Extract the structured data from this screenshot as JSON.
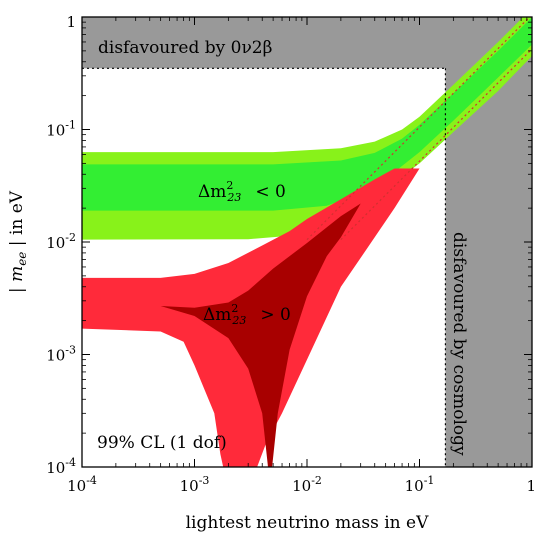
{
  "chart_data": {
    "type": "area",
    "x_scale": "log",
    "y_scale": "log",
    "xlim": [
      0.0001,
      1
    ],
    "ylim": [
      0.0001,
      1
    ],
    "xlabel": "lightest neutrino mass in eV",
    "ylabel": "|m_ee| in eV",
    "x_ticks": [
      {
        "value": 0.0001,
        "base": "10",
        "exp": "-4"
      },
      {
        "value": 0.001,
        "base": "10",
        "exp": "-3"
      },
      {
        "value": 0.01,
        "base": "10",
        "exp": "-2"
      },
      {
        "value": 0.1,
        "base": "10",
        "exp": "-1"
      },
      {
        "value": 1,
        "base": "1",
        "exp": ""
      }
    ],
    "y_ticks": [
      {
        "value": 0.0001,
        "base": "10",
        "exp": "-4"
      },
      {
        "value": 0.001,
        "base": "10",
        "exp": "-3"
      },
      {
        "value": 0.01,
        "base": "10",
        "exp": "-2"
      },
      {
        "value": 0.1,
        "base": "10",
        "exp": "-1"
      },
      {
        "value": 1,
        "base": "1",
        "exp": ""
      }
    ],
    "grid": false,
    "exclusions": [
      {
        "name": "disfavoured by 0ν2β",
        "label": "disfavoured by 0ν2β",
        "y_min": 0.35,
        "color": "#999999"
      },
      {
        "name": "disfavoured by cosmology",
        "label": "disfavoured by cosmology",
        "x_min": 0.17,
        "color": "#999999"
      }
    ],
    "series": [
      {
        "name": "Δm²₂₃ < 0",
        "label_main": "Δm",
        "label_sup": "2",
        "label_sub": "23",
        "label_rel": "< 0",
        "outer_color": "#88f21a",
        "inner_color": "#33ee33",
        "outer_upper": [
          [
            0.0001,
            0.063
          ],
          [
            0.005,
            0.063
          ],
          [
            0.02,
            0.068
          ],
          [
            0.04,
            0.078
          ],
          [
            0.07,
            0.1
          ],
          [
            0.1,
            0.13
          ],
          [
            0.2,
            0.25
          ],
          [
            0.5,
            0.6
          ],
          [
            1,
            1.2
          ]
        ],
        "outer_lower": [
          [
            0.0001,
            0.0105
          ],
          [
            0.003,
            0.0106
          ],
          [
            0.008,
            0.0115
          ],
          [
            0.015,
            0.014
          ],
          [
            0.03,
            0.021
          ],
          [
            0.06,
            0.034
          ],
          [
            0.1,
            0.05
          ],
          [
            0.2,
            0.095
          ],
          [
            0.5,
            0.22
          ],
          [
            1,
            0.45
          ]
        ],
        "inner_upper": [
          [
            0.0001,
            0.049
          ],
          [
            0.005,
            0.049
          ],
          [
            0.02,
            0.053
          ],
          [
            0.04,
            0.062
          ],
          [
            0.07,
            0.083
          ],
          [
            0.1,
            0.11
          ],
          [
            0.2,
            0.21
          ],
          [
            0.5,
            0.5
          ],
          [
            1,
            1
          ]
        ],
        "inner_lower": [
          [
            0.0001,
            0.019
          ],
          [
            0.005,
            0.019
          ],
          [
            0.015,
            0.021
          ],
          [
            0.03,
            0.027
          ],
          [
            0.06,
            0.042
          ],
          [
            0.1,
            0.063
          ],
          [
            0.2,
            0.12
          ],
          [
            0.5,
            0.29
          ],
          [
            1,
            0.57
          ]
        ]
      },
      {
        "name": "Δm²₂₃ > 0",
        "label_main": "Δm",
        "label_sup": "2",
        "label_sub": "23",
        "label_rel": "> 0",
        "outer_color": "#ff2a3a",
        "inner_color": "#a80000",
        "outer_upper": [
          [
            0.0001,
            0.0048
          ],
          [
            0.0005,
            0.0048
          ],
          [
            0.001,
            0.0052
          ],
          [
            0.002,
            0.0065
          ],
          [
            0.004,
            0.0093
          ],
          [
            0.007,
            0.0125
          ],
          [
            0.01,
            0.016
          ],
          [
            0.02,
            0.024
          ],
          [
            0.04,
            0.036
          ],
          [
            0.06,
            0.045
          ]
        ],
        "outer_lower": [
          [
            0.0001,
            0.0017
          ],
          [
            0.0005,
            0.0016
          ],
          [
            0.0008,
            0.0013
          ],
          [
            0.001,
            0.0008
          ],
          [
            0.0015,
            0.0003
          ],
          [
            0.0017,
            0.00013
          ],
          [
            0.0018,
            0.0001
          ]
        ],
        "outer_right_lower": [
          [
            0.0036,
            0.0001
          ],
          [
            0.0043,
            0.00016
          ],
          [
            0.006,
            0.0003
          ],
          [
            0.01,
            0.0009
          ],
          [
            0.02,
            0.004
          ],
          [
            0.04,
            0.011
          ],
          [
            0.06,
            0.02
          ],
          [
            0.1,
            0.045
          ]
        ],
        "inner_upper": [
          [
            0.0001,
            0.0028
          ],
          [
            0.0005,
            0.0027
          ],
          [
            0.001,
            0.0026
          ],
          [
            0.002,
            0.0029
          ],
          [
            0.003,
            0.0037
          ],
          [
            0.005,
            0.0058
          ],
          [
            0.01,
            0.0098
          ],
          [
            0.02,
            0.017
          ],
          [
            0.03,
            0.022
          ]
        ],
        "inner_lower": [
          [
            0.0001,
            0.0028
          ],
          [
            0.0005,
            0.0027
          ],
          [
            0.001,
            0.0022
          ],
          [
            0.002,
            0.0014
          ],
          [
            0.003,
            0.00075
          ],
          [
            0.004,
            0.0003
          ],
          [
            0.0045,
            0.0001
          ]
        ],
        "inner_right": [
          [
            0.0049,
            0.0001
          ],
          [
            0.0055,
            0.0003
          ],
          [
            0.007,
            0.0011
          ],
          [
            0.01,
            0.0033
          ],
          [
            0.015,
            0.0075
          ],
          [
            0.02,
            0.011
          ],
          [
            0.03,
            0.022
          ]
        ]
      }
    ],
    "dotted_lines": [
      {
        "from": [
          0.0001,
          0.35
        ],
        "to": [
          0.17,
          0.35
        ]
      },
      {
        "from": [
          0.17,
          0.35
        ],
        "to": [
          0.17,
          0.0001
        ]
      }
    ],
    "red_dotted_lines": [
      {
        "from": [
          0.01,
          0.0105
        ],
        "to": [
          1,
          1.05
        ]
      },
      {
        "from": [
          0.02,
          0.0105
        ],
        "to": [
          1,
          0.52
        ]
      }
    ],
    "annotation": "99% CL (1 dof)"
  }
}
